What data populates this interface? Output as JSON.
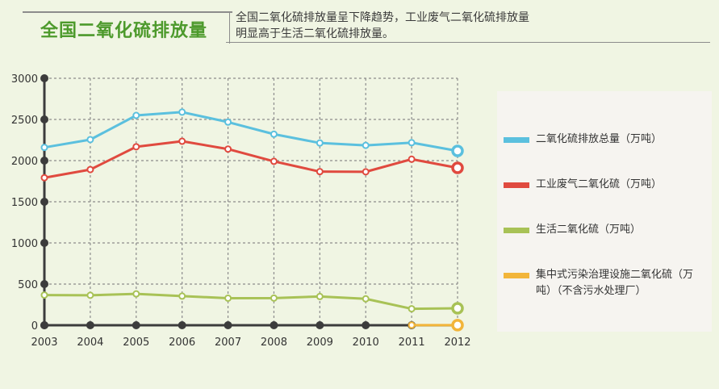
{
  "header": {
    "title": "全国二氧化硫排放量",
    "description": "全国二氧化硫排放量呈下降趋势，工业废气二氧化硫排放量明显高于生活二氧化硫排放量。"
  },
  "colors": {
    "total": "#5bc0de",
    "industrial": "#e04a3f",
    "domestic": "#a8c256",
    "centralized": "#f2b53a",
    "grid": "#8c8c8c",
    "axis": "#3c3c3c"
  },
  "chart_data": {
    "type": "line",
    "x": [
      "2003",
      "2004",
      "2005",
      "2006",
      "2007",
      "2008",
      "2009",
      "2010",
      "2011",
      "2012"
    ],
    "ylim": [
      0,
      3000
    ],
    "yticks": [
      "0",
      "500",
      "1000",
      "1500",
      "2000",
      "2500",
      "3000"
    ],
    "grid": true,
    "legend_position": "right",
    "series": [
      {
        "name": "二氧化硫排放总量（万吨）",
        "color": "#5bc0de",
        "values": [
          2160,
          2255,
          2549,
          2589,
          2468,
          2321,
          2214,
          2185,
          2218,
          2118
        ]
      },
      {
        "name": "工业废气二氧化硫（万吨）",
        "color": "#e04a3f",
        "values": [
          1792,
          1891,
          2168,
          2235,
          2140,
          1991,
          1866,
          1864,
          2017,
          1912
        ]
      },
      {
        "name": "生活二氧化硫（万吨）",
        "color": "#a8c256",
        "values": [
          367,
          364,
          381,
          354,
          329,
          330,
          349,
          321,
          200,
          206
        ]
      },
      {
        "name": "集中式污染治理设施二氧化硫（万吨）（不含污水处理厂）",
        "color": "#f2b53a",
        "values": [
          null,
          null,
          null,
          null,
          null,
          null,
          null,
          null,
          1,
          1
        ]
      }
    ]
  }
}
